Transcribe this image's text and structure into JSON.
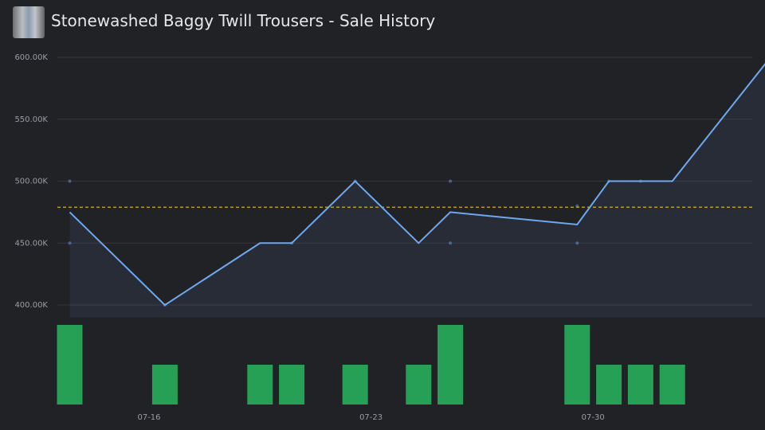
{
  "chart_data": {
    "type": "line",
    "title": "Stonewashed Baggy Twill Trousers - Sale History",
    "x": [
      "07-13",
      "07-16",
      "07-19",
      "07-20",
      "07-22",
      "07-24",
      "07-25",
      "07-29",
      "07-30",
      "07-31",
      "08-01",
      "08-04"
    ],
    "values": [
      475000,
      400000,
      450000,
      450000,
      500000,
      450000,
      475000,
      465000,
      500000,
      500000,
      500000,
      597000
    ],
    "volumes": [
      2,
      1,
      1,
      1,
      1,
      1,
      2,
      2,
      1,
      1,
      1,
      null
    ],
    "sales": {
      "x": [
        "07-13",
        "07-13",
        "07-16",
        "07-20",
        "07-22",
        "07-25",
        "07-25",
        "07-29",
        "07-29",
        "07-30",
        "07-31"
      ],
      "values": [
        500000,
        450000,
        400000,
        450000,
        500000,
        500000,
        450000,
        450000,
        480000,
        500000,
        500000
      ]
    },
    "reference_line": 479000,
    "color": "#6ea8f0",
    "volume_color": "#25a055",
    "reference_color": "#e8c21a",
    "ylim": [
      390000,
      600000
    ],
    "yticks": [
      {
        "value": 400000,
        "label": "400.00K"
      },
      {
        "value": 450000,
        "label": "450.00K"
      },
      {
        "value": 500000,
        "label": "500.00K"
      },
      {
        "value": 550000,
        "label": "550.00K"
      },
      {
        "value": 600000,
        "label": "600.00K"
      }
    ],
    "xticks": [
      "07-16",
      "07-23",
      "07-30"
    ],
    "grid": true
  }
}
